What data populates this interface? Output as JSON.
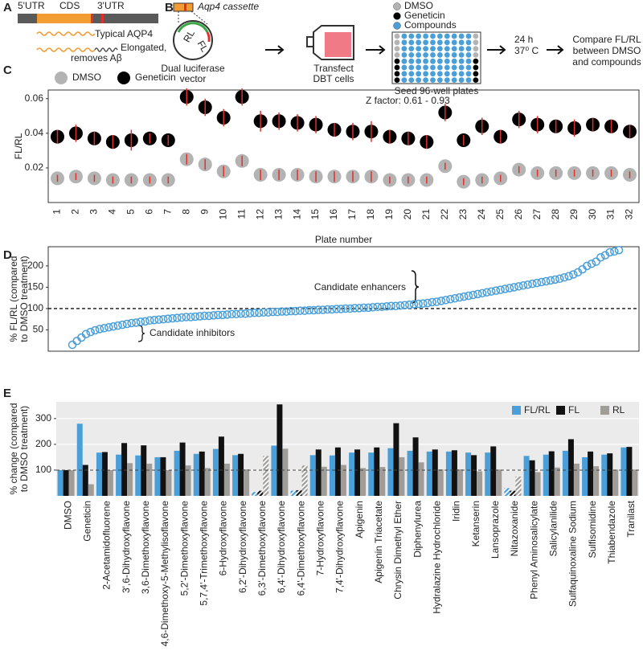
{
  "panel_labels": [
    "A",
    "B",
    "C",
    "D",
    "E"
  ],
  "panel_a": {
    "segments": [
      "5'UTR",
      "CDS",
      "3'UTR"
    ],
    "typical": "Typical AQP4",
    "elongated": [
      "Elongated,",
      "removes Aβ"
    ]
  },
  "panel_b": {
    "cassette": "Aqp4 cassette",
    "vector_parts": [
      "RL",
      "FL"
    ],
    "vector": [
      "Dual luciferase",
      "vector"
    ],
    "transfect": [
      "Transfect",
      "DBT cells"
    ],
    "legend": [
      {
        "name": "DMSO",
        "color": "#b3b3b3"
      },
      {
        "name": "Geneticin",
        "color": "#000000"
      },
      {
        "name": "Compounds",
        "color": "#4a9fd8"
      }
    ],
    "seed": "Seed 96-well plates",
    "incubate": [
      "24 h",
      "37⁰ C"
    ],
    "compare": [
      "Compare FL/RL",
      "between DMSO",
      "and compounds"
    ]
  },
  "chart_data": [
    {
      "type": "dot",
      "ylabel": "FL/RL",
      "xlabel": "Plate number",
      "annotation": "Z factor: 0.61 - 0.93",
      "categories": [
        "1",
        "2",
        "3",
        "4",
        "5",
        "6",
        "7",
        "8",
        "9",
        "10",
        "11",
        "12",
        "13",
        "14",
        "15",
        "16",
        "17",
        "18",
        "19",
        "20",
        "21",
        "22",
        "23",
        "24",
        "25",
        "26",
        "27",
        "28",
        "29",
        "30",
        "31",
        "32"
      ],
      "ylim": [
        0,
        0.065
      ],
      "yticks": [
        0.02,
        0.04,
        0.06
      ],
      "grid": false,
      "error_color": "#e0302a",
      "series": [
        {
          "name": "DMSO",
          "color": "#b3b3b3",
          "values": [
            0.014,
            0.015,
            0.014,
            0.013,
            0.013,
            0.013,
            0.013,
            0.025,
            0.022,
            0.018,
            0.024,
            0.016,
            0.016,
            0.016,
            0.015,
            0.015,
            0.015,
            0.015,
            0.013,
            0.013,
            0.013,
            0.021,
            0.012,
            0.013,
            0.014,
            0.019,
            0.017,
            0.017,
            0.017,
            0.017,
            0.017,
            0.016
          ],
          "errors": [
            0.002,
            0.002,
            0.002,
            0.002,
            0.002,
            0.002,
            0.002,
            0.003,
            0.003,
            0.003,
            0.003,
            0.003,
            0.003,
            0.003,
            0.003,
            0.003,
            0.003,
            0.003,
            0.002,
            0.002,
            0.002,
            0.002,
            0.002,
            0.002,
            0.002,
            0.002,
            0.002,
            0.002,
            0.002,
            0.002,
            0.002,
            0.002
          ]
        },
        {
          "name": "Geneticin",
          "color": "#000000",
          "values": [
            0.038,
            0.04,
            0.037,
            0.035,
            0.036,
            0.037,
            0.036,
            0.061,
            0.055,
            0.049,
            0.061,
            0.047,
            0.047,
            0.046,
            0.045,
            0.042,
            0.041,
            0.041,
            0.038,
            0.037,
            0.035,
            0.052,
            0.036,
            0.044,
            0.038,
            0.048,
            0.045,
            0.044,
            0.043,
            0.045,
            0.044,
            0.041
          ],
          "errors": [
            0.004,
            0.005,
            0.004,
            0.004,
            0.006,
            0.003,
            0.003,
            0.005,
            0.005,
            0.005,
            0.005,
            0.006,
            0.005,
            0.005,
            0.005,
            0.004,
            0.005,
            0.006,
            0.004,
            0.004,
            0.004,
            0.005,
            0.003,
            0.005,
            0.004,
            0.005,
            0.005,
            0.004,
            0.005,
            0.004,
            0.004,
            0.004
          ]
        }
      ]
    },
    {
      "type": "scatter",
      "ylabel": [
        "% FL/RL (compared",
        "to DMSO treatment)"
      ],
      "annotations": [
        "Candidate enhancers",
        "Candidate inhibitors"
      ],
      "ylim": [
        0,
        245
      ],
      "yticks": [
        50,
        100,
        150,
        200
      ],
      "grid": false,
      "hline": 100,
      "color": "#4a9fd8",
      "values": [
        15,
        24,
        32,
        40,
        45,
        49,
        52,
        54,
        56,
        58,
        60,
        62,
        64,
        66,
        67,
        69,
        70,
        72,
        73,
        74,
        75,
        76,
        77,
        78,
        79,
        80,
        80,
        81,
        82,
        83,
        83,
        84,
        85,
        85,
        86,
        87,
        87,
        88,
        88,
        89,
        90,
        90,
        91,
        91,
        92,
        92,
        93,
        93,
        94,
        94,
        95,
        95,
        96,
        96,
        97,
        97,
        98,
        98,
        99,
        99,
        100,
        100,
        101,
        101,
        102,
        102,
        103,
        104,
        104,
        105,
        106,
        106,
        107,
        108,
        109,
        110,
        111,
        112,
        113,
        115,
        116,
        118,
        120,
        122,
        124,
        126,
        128,
        130,
        132,
        134,
        136,
        138,
        140,
        142,
        144,
        146,
        148,
        150,
        152,
        154,
        156,
        158,
        160,
        162,
        164,
        166,
        168,
        170,
        173,
        176,
        180,
        185,
        192,
        200,
        205,
        210,
        220,
        225,
        232,
        234,
        237
      ]
    },
    {
      "type": "bar",
      "ylabel": [
        "% change (compared",
        "to DMSO treatment)"
      ],
      "ylim": [
        0,
        365
      ],
      "yticks": [
        100,
        200,
        300
      ],
      "grid": true,
      "background": "#ebebeb",
      "hline": 100,
      "hatched": [
        10,
        12,
        23
      ],
      "categories": [
        "DMSO",
        "Geneticin",
        "2-Acetamidofluorene",
        "3',6-Dihydroxyflavone",
        "3,6-Dimethoxyflavone",
        "4,6-Dimethoxy-5-Methylisoflavone",
        "5,2'-Dimethoxyflavone",
        "5,7,4'-Trimethoxyflavone",
        "6-Hydroxyflavone",
        "6,2'-Dihydroxyflavone",
        "6,3'-Dimethoxyflavone",
        "6,4'-Dihydroxyflavone",
        "6,4'-Dimethoxyflavone",
        "7-Hydroxyflavone",
        "7,4'-Dihydroxyflavone",
        "Apigenin",
        "Apigenin Triacetate",
        "Chrysin Dimethyl Ether",
        "Diphenylurea",
        "Hydralazine Hydrochloride",
        "Iridin",
        "Ketanserin",
        "Lansoprazole",
        "Nitazoxanide",
        "Phenyl Aminosalicylate",
        "Salicylanilide",
        "Sulfaquinoxaline Sodium",
        "Sulfisomidine",
        "Thiabendazole",
        "Tranilast"
      ],
      "series": [
        {
          "name": "FL/RL",
          "color": "#4a9fd8",
          "values": [
            100,
            280,
            168,
            160,
            157,
            150,
            175,
            163,
            182,
            158,
            15,
            195,
            20,
            158,
            157,
            168,
            168,
            185,
            175,
            172,
            172,
            168,
            168,
            30,
            155,
            160,
            175,
            150,
            160,
            188
          ]
        },
        {
          "name": "FL",
          "color": "#111111",
          "values": [
            100,
            120,
            170,
            205,
            196,
            150,
            207,
            172,
            230,
            163,
            20,
            355,
            22,
            180,
            188,
            180,
            188,
            282,
            227,
            180,
            177,
            158,
            192,
            20,
            138,
            173,
            220,
            172,
            165,
            190
          ]
        },
        {
          "name": "RL",
          "color": "#a09c98",
          "values": [
            100,
            45,
            100,
            127,
            125,
            100,
            118,
            108,
            125,
            103,
            155,
            183,
            118,
            113,
            120,
            108,
            112,
            150,
            130,
            103,
            103,
            95,
            102,
            75,
            92,
            110,
            125,
            115,
            102,
            102
          ]
        }
      ]
    }
  ]
}
